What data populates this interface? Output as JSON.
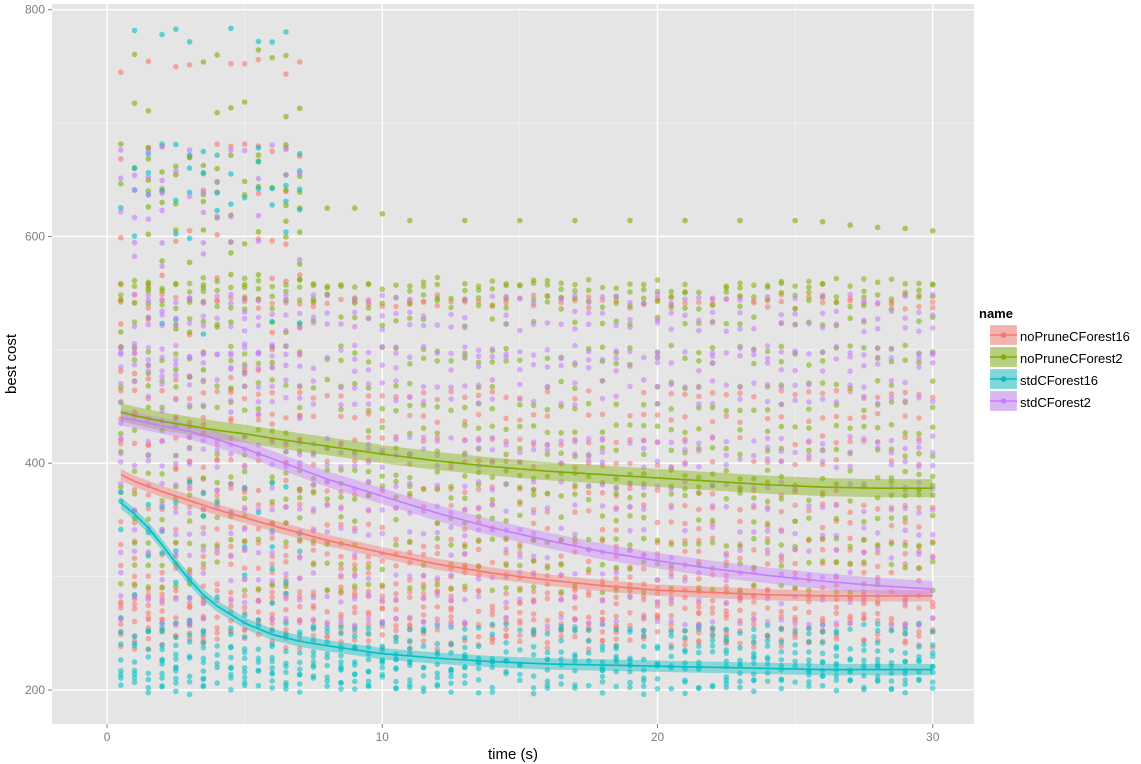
{
  "chart_data": {
    "type": "scatter",
    "xlabel": "time (s)",
    "ylabel": "best cost",
    "xlim": [
      -2,
      31.5
    ],
    "ylim": [
      170,
      805
    ],
    "x_ticks": [
      0,
      10,
      20,
      30
    ],
    "x_tick_labels": [
      "0",
      "10",
      "20",
      "30"
    ],
    "y_ticks": [
      200,
      400,
      600,
      800
    ],
    "y_tick_labels": [
      "200",
      "400",
      "600",
      "800"
    ],
    "x_minor": [
      5,
      15,
      25
    ],
    "y_minor": [
      300,
      500,
      700
    ],
    "grid": true,
    "legend": {
      "title": "name",
      "position": "right",
      "entries": [
        "noPruneCForest16",
        "noPruneCForest2",
        "stdCForest16",
        "stdCForest2"
      ]
    },
    "series": [
      {
        "name": "noPruneCForest16",
        "color": "#F8766D",
        "smooth_x": [
          0.5,
          1,
          2,
          3,
          4,
          5,
          6,
          8,
          10,
          12,
          14,
          16,
          18,
          20,
          22,
          24,
          26,
          28,
          30
        ],
        "smooth_y": [
          390,
          384,
          375,
          367,
          359,
          352,
          345,
          332,
          321,
          311,
          303,
          297,
          292,
          288,
          286,
          284,
          283,
          283,
          283
        ],
        "band_halfwidth": 5,
        "point_levels": [
          240,
          245,
          250,
          255,
          260,
          265,
          270,
          275,
          280,
          285,
          290,
          300,
          310,
          320,
          330,
          345,
          360,
          375,
          400,
          420,
          440,
          460,
          540,
          545
        ],
        "early_levels": [
          380,
          400,
          420,
          440,
          460,
          480,
          500,
          520,
          560,
          600,
          640,
          675,
          750
        ]
      },
      {
        "name": "noPruneCForest2",
        "color": "#7CAE00",
        "smooth_x": [
          0.5,
          1,
          2,
          3,
          4,
          5,
          6,
          8,
          10,
          12,
          14,
          16,
          18,
          20,
          22,
          24,
          26,
          28,
          30
        ],
        "smooth_y": [
          445,
          442,
          437,
          433,
          429,
          426,
          422,
          415,
          408,
          402,
          397,
          393,
          390,
          387,
          384,
          381,
          379,
          378,
          378
        ],
        "band_halfwidth": 8,
        "point_levels": [
          290,
          310,
          330,
          350,
          370,
          380,
          390,
          410,
          430,
          450,
          470,
          490,
          500,
          525,
          540,
          548,
          555,
          560
        ],
        "early_levels": [
          480,
          520,
          560,
          580,
          600,
          610,
          625,
          640,
          650,
          665,
          675,
          712,
          760
        ],
        "top_line": [
          [
            7,
            625
          ],
          [
            8,
            625
          ],
          [
            9,
            625
          ],
          [
            10,
            620
          ],
          [
            11,
            614
          ],
          [
            13,
            614
          ],
          [
            15,
            614
          ],
          [
            17,
            614
          ],
          [
            19,
            614
          ],
          [
            21,
            614
          ],
          [
            23,
            614
          ],
          [
            25,
            614
          ],
          [
            26,
            613
          ],
          [
            27,
            610
          ],
          [
            28,
            608
          ],
          [
            29,
            607
          ],
          [
            30,
            605
          ]
        ]
      },
      {
        "name": "stdCForest16",
        "color": "#00BFC4",
        "smooth_x": [
          0.5,
          1,
          1.5,
          2,
          2.5,
          3,
          3.5,
          4,
          5,
          6,
          7,
          8,
          10,
          12,
          14,
          16,
          18,
          20,
          22,
          24,
          26,
          28,
          30
        ],
        "smooth_y": [
          365,
          355,
          343,
          328,
          312,
          297,
          284,
          274,
          259,
          249,
          243,
          239,
          232,
          228,
          225,
          223,
          222,
          221,
          220,
          219,
          218,
          218,
          218
        ],
        "band_halfwidth": 5,
        "point_levels": [
          200,
          205,
          210,
          214,
          218,
          222,
          226,
          230,
          235,
          240,
          250,
          255
        ],
        "early_levels": [
          260,
          280,
          300,
          320,
          340,
          360,
          380,
          520,
          600,
          625,
          640,
          660,
          675,
          778
        ]
      },
      {
        "name": "stdCForest2",
        "color": "#C77CFF",
        "smooth_x": [
          0.5,
          1,
          2,
          3,
          4,
          5,
          6,
          7,
          8,
          10,
          12,
          14,
          16,
          18,
          20,
          22,
          24,
          26,
          28,
          30
        ],
        "smooth_y": [
          440,
          438,
          433,
          428,
          421,
          413,
          404,
          395,
          386,
          371,
          356,
          343,
          332,
          322,
          314,
          307,
          301,
          296,
          292,
          289
        ],
        "band_halfwidth": 7,
        "point_levels": [
          260,
          280,
          300,
          320,
          340,
          360,
          380,
          400,
          410,
          420,
          455,
          470,
          485,
          495,
          500,
          520,
          530,
          545
        ],
        "early_levels": [
          440,
          480,
          500,
          540,
          580,
          600,
          620,
          640,
          655,
          680
        ]
      }
    ],
    "x_points": [
      0.5,
      1,
      1.5,
      2,
      2.5,
      3,
      3.5,
      4,
      4.5,
      5,
      5.5,
      6,
      6.5,
      7,
      7.5,
      8,
      8.5,
      9,
      9.5,
      10,
      10.5,
      11,
      11.5,
      12,
      12.5,
      13,
      13.5,
      14,
      14.5,
      15,
      15.5,
      16,
      16.5,
      17,
      17.5,
      18,
      18.5,
      19,
      19.5,
      20,
      20.5,
      21,
      21.5,
      22,
      22.5,
      23,
      23.5,
      24,
      24.5,
      25,
      25.5,
      26,
      26.5,
      27,
      27.5,
      28,
      28.5,
      29,
      29.5,
      30
    ]
  }
}
